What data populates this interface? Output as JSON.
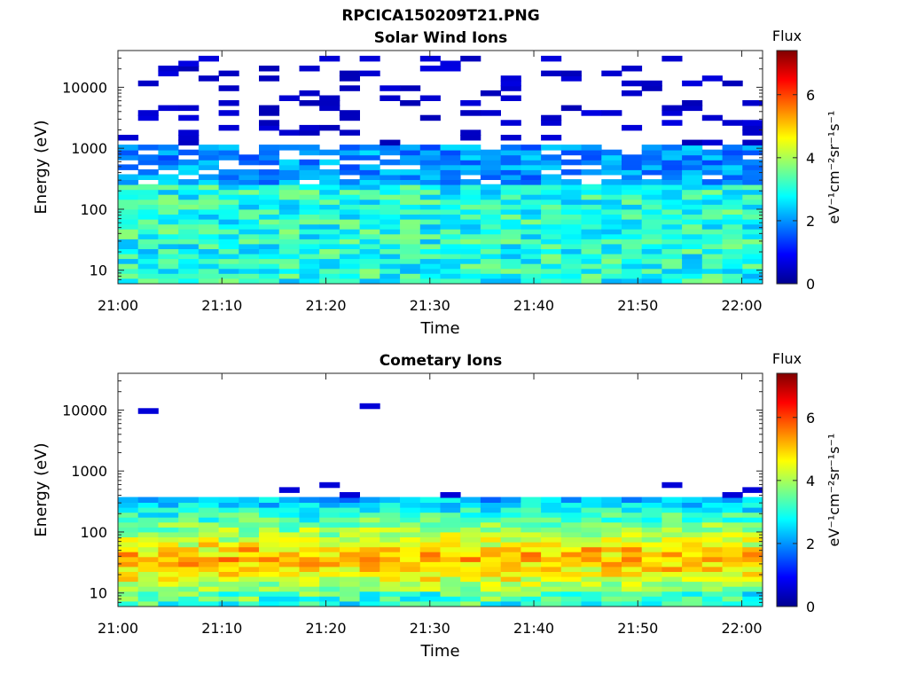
{
  "figure": {
    "title": "RPCICA150209T21.PNG"
  },
  "colormap": [
    "#00008f",
    "#0000ff",
    "#0080ff",
    "#00ffff",
    "#80ff80",
    "#ffff00",
    "#ff8000",
    "#ff0000",
    "#800000"
  ],
  "chart_data": [
    {
      "type": "heatmap",
      "title": "Solar Wind Ions",
      "xlabel": "Time",
      "ylabel": "Energy (eV)",
      "x_ticks": [
        "21:00",
        "21:10",
        "21:20",
        "21:30",
        "21:40",
        "21:50",
        "22:00"
      ],
      "y_ticks": [
        "10",
        "100",
        "1000",
        "10000"
      ],
      "y_scale": "log",
      "ylim": [
        6,
        40000
      ],
      "xlim": [
        "21:00",
        "22:02"
      ],
      "colorbar": {
        "label": "Flux",
        "units": "eV⁻¹cm⁻²sr⁻¹s⁻¹",
        "ticks": [
          "0",
          "2",
          "4",
          "6"
        ],
        "range": [
          0,
          7.4
        ]
      },
      "grid": false
    },
    {
      "type": "heatmap",
      "title": "Cometary Ions",
      "xlabel": "Time",
      "ylabel": "Energy (eV)",
      "x_ticks": [
        "21:00",
        "21:10",
        "21:20",
        "21:30",
        "21:40",
        "21:50",
        "22:00"
      ],
      "y_ticks": [
        "10",
        "100",
        "1000",
        "10000"
      ],
      "y_scale": "log",
      "ylim": [
        6,
        40000
      ],
      "xlim": [
        "21:00",
        "22:02"
      ],
      "colorbar": {
        "label": "Flux",
        "units": "eV⁻¹cm⁻²sr⁻¹s⁻¹",
        "ticks": [
          "0",
          "2",
          "4",
          "6"
        ],
        "range": [
          0,
          7.4
        ]
      },
      "grid": false
    }
  ]
}
